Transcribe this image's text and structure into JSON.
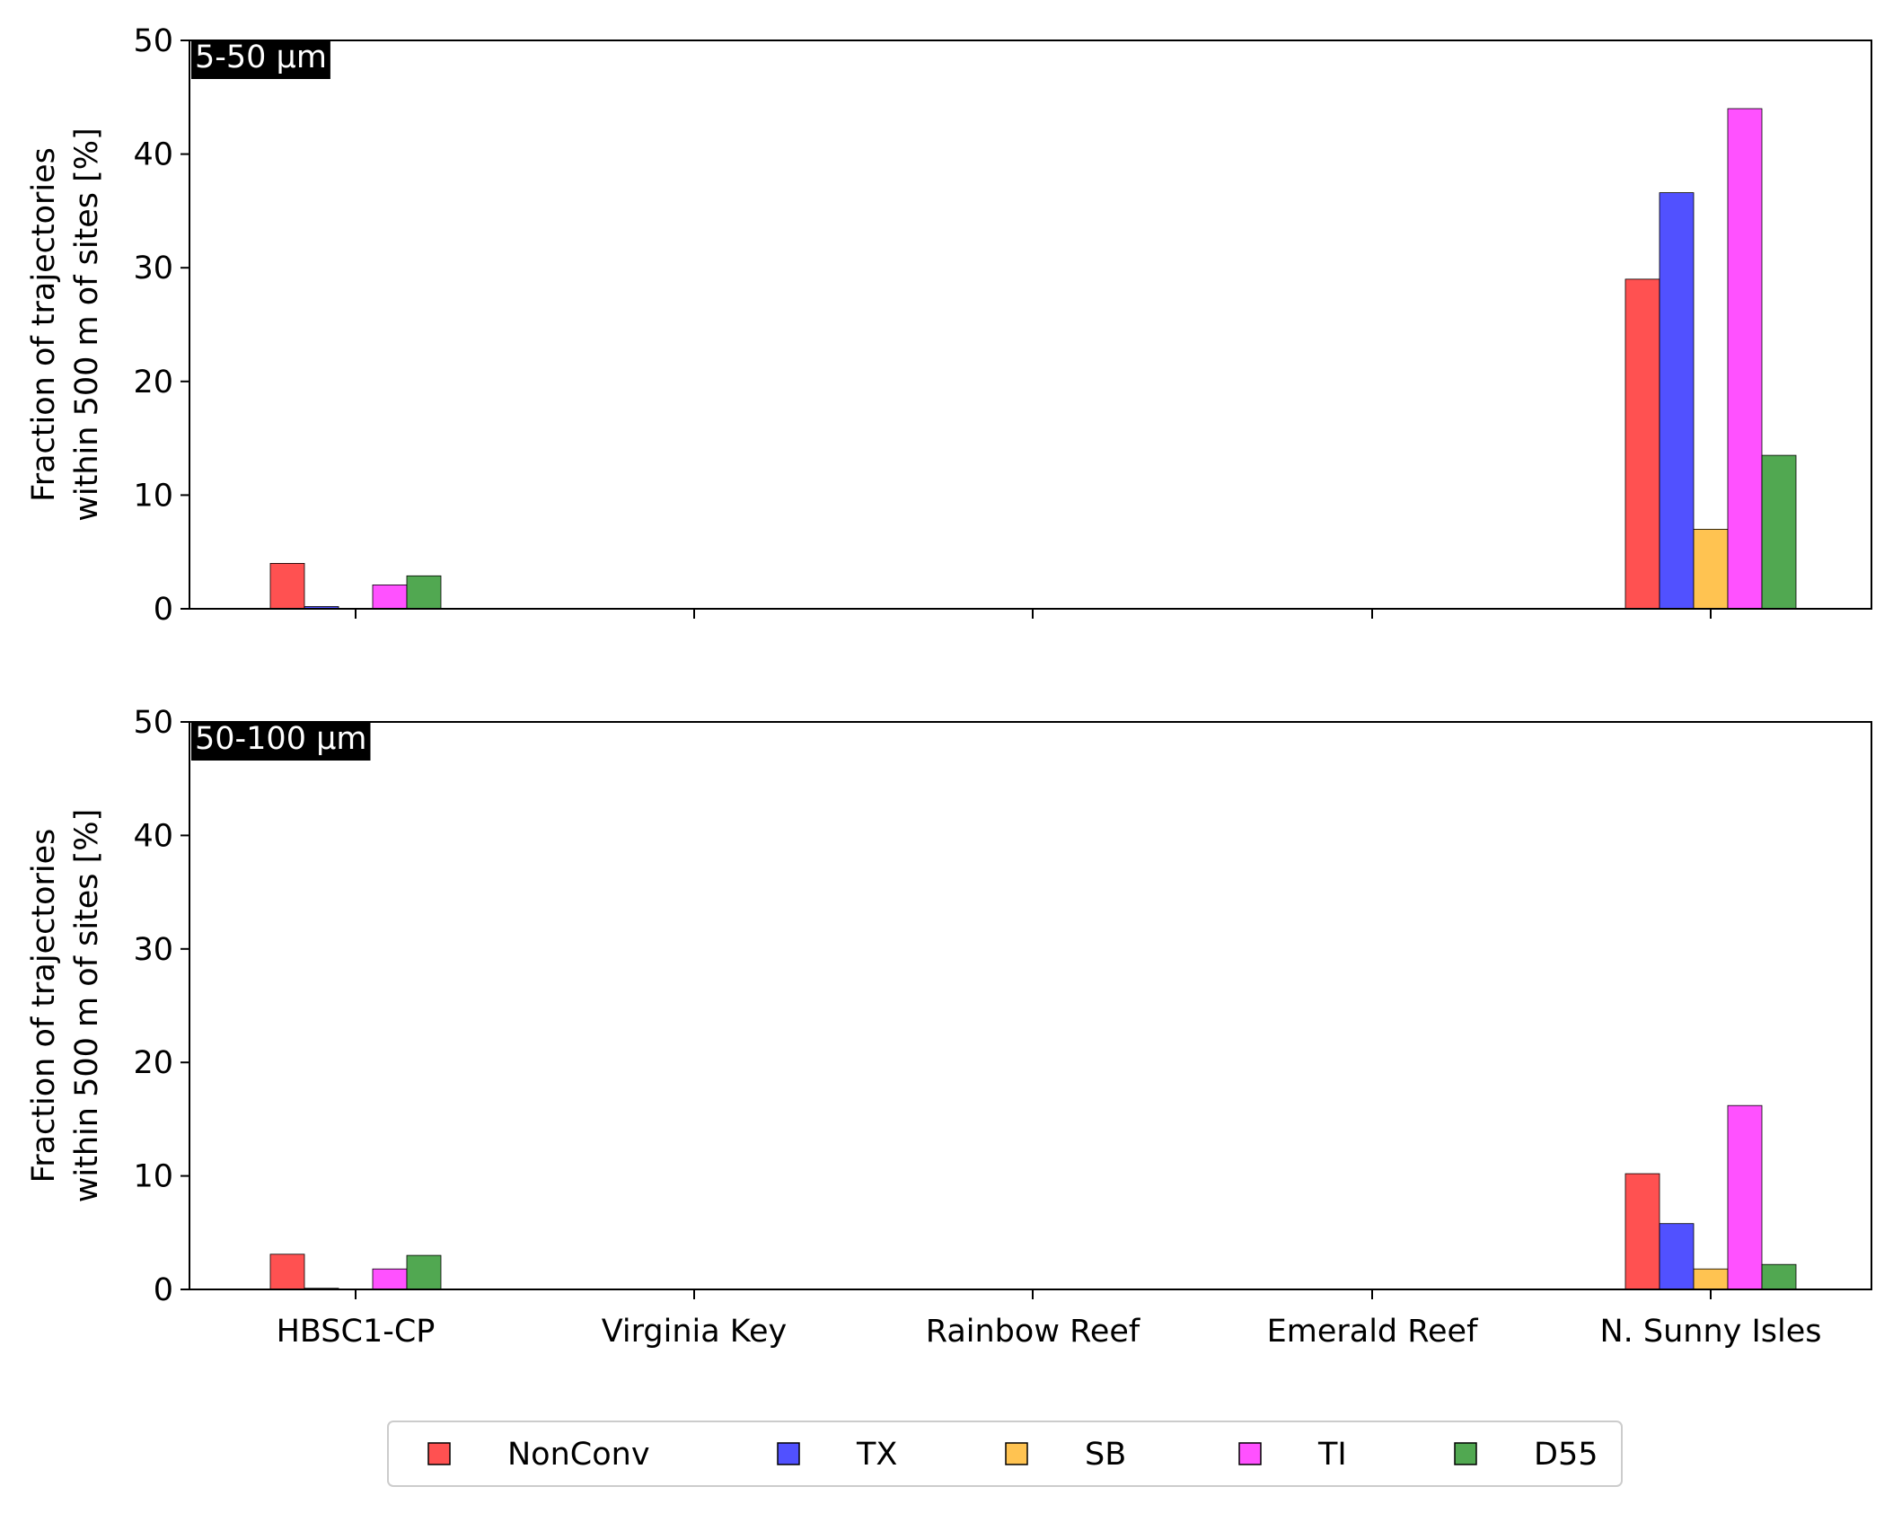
{
  "chart_data": [
    {
      "type": "bar",
      "panel_label": "5-50 μm",
      "ylabel_lines": [
        "Fraction of trajectories",
        "within 500 m of sites [%]"
      ],
      "categories": [
        "HBSC1-CP",
        "Virginia Key",
        "Rainbow Reef",
        "Emerald Reef",
        "N. Sunny Isles"
      ],
      "show_tick_labels": false,
      "ylim": [
        0,
        50
      ],
      "yticks": [
        0,
        10,
        20,
        30,
        40,
        50
      ],
      "grid": false,
      "series": [
        {
          "name": "NonConv",
          "color": "#ff3333",
          "values": [
            4.0,
            0,
            0,
            0,
            29.0
          ]
        },
        {
          "name": "TX",
          "color": "#3333ff",
          "values": [
            0.2,
            0,
            0,
            0,
            36.6
          ]
        },
        {
          "name": "SB",
          "color": "#ffb833",
          "values": [
            0,
            0,
            0,
            0,
            7.0
          ]
        },
        {
          "name": "TI",
          "color": "#ff33ff",
          "values": [
            2.1,
            0,
            0,
            0,
            44.0
          ]
        },
        {
          "name": "D55",
          "color": "#339933",
          "values": [
            2.9,
            0,
            0,
            0,
            13.5
          ]
        }
      ]
    },
    {
      "type": "bar",
      "panel_label": "50-100 μm",
      "ylabel_lines": [
        "Fraction of trajectories",
        "within 500 m of sites [%]"
      ],
      "categories": [
        "HBSC1-CP",
        "Virginia Key",
        "Rainbow Reef",
        "Emerald Reef",
        "N. Sunny Isles"
      ],
      "show_tick_labels": true,
      "ylim": [
        0,
        50
      ],
      "yticks": [
        0,
        10,
        20,
        30,
        40,
        50
      ],
      "grid": false,
      "series": [
        {
          "name": "NonConv",
          "color": "#ff3333",
          "values": [
            3.1,
            0,
            0,
            0,
            10.2
          ]
        },
        {
          "name": "TX",
          "color": "#3333ff",
          "values": [
            0.1,
            0,
            0,
            0,
            5.8
          ]
        },
        {
          "name": "SB",
          "color": "#ffb833",
          "values": [
            0,
            0,
            0,
            0,
            1.8
          ]
        },
        {
          "name": "TI",
          "color": "#ff33ff",
          "values": [
            1.8,
            0,
            0,
            0,
            16.2
          ]
        },
        {
          "name": "D55",
          "color": "#339933",
          "values": [
            3.0,
            0,
            0,
            0,
            2.2
          ]
        }
      ]
    }
  ],
  "legend": {
    "placement": "bottom-center",
    "entries": [
      {
        "name": "NonConv",
        "color": "#ff3333"
      },
      {
        "name": "TX",
        "color": "#3333ff"
      },
      {
        "name": "SB",
        "color": "#ffb833"
      },
      {
        "name": "TI",
        "color": "#ff33ff"
      },
      {
        "name": "D55",
        "color": "#339933"
      }
    ]
  }
}
